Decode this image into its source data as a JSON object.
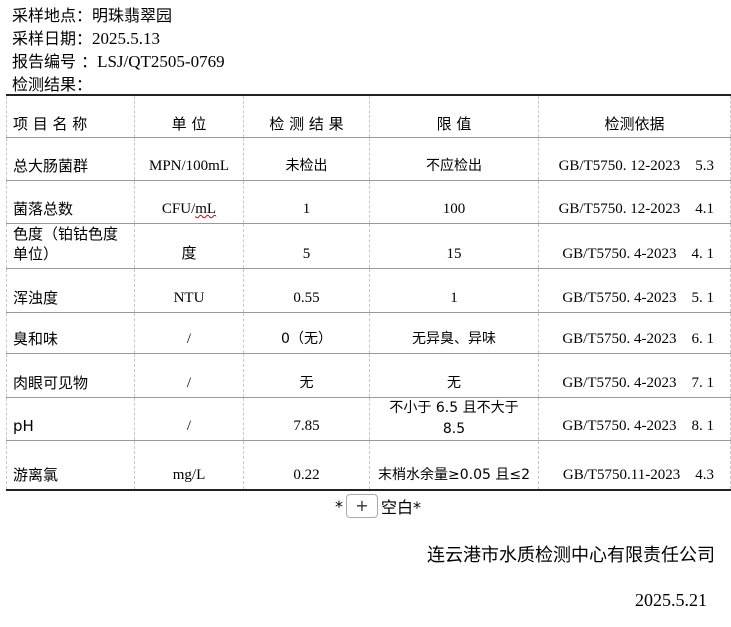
{
  "header": {
    "location_label": "采样地点：",
    "location": "明珠翡翠园",
    "date_label": "采样日期：",
    "date": "2025.5.13",
    "report_label": "报告编号 ：",
    "report_no": "LSJ/QT2505-0769",
    "results_label": "检测结果："
  },
  "table": {
    "columns": [
      "项 目 名 称",
      "单  位",
      "检 测 结 果",
      "限  值",
      "检测依据"
    ],
    "rows": [
      {
        "name": "总大肠菌群",
        "unit": "MPN/100mL",
        "result": "未检出",
        "limit": "不应检出",
        "basis": "GB/T5750. 12-2023    5.3"
      },
      {
        "name": "菌落总数",
        "unit": "CFU/mL",
        "result": "1",
        "limit": "100",
        "basis": "GB/T5750. 12-2023    4.1"
      },
      {
        "name": "色度（铂钴色度单位）",
        "unit": "度",
        "result": "5",
        "limit": "15",
        "basis": "GB/T5750. 4-2023    4. 1"
      },
      {
        "name": "浑浊度",
        "unit": "NTU",
        "result": "0.55",
        "limit": "1",
        "basis": "GB/T5750. 4-2023    5. 1"
      },
      {
        "name": "臭和味",
        "unit": "/",
        "result": "0（无）",
        "limit": "无异臭、异味",
        "basis": "GB/T5750. 4-2023    6. 1"
      },
      {
        "name": "肉眼可见物",
        "unit": "/",
        "result": "无",
        "limit": "无",
        "basis": "GB/T5750. 4-2023    7. 1"
      },
      {
        "name": "pH",
        "unit": "/",
        "result": "7.85",
        "limit": "不小于 6.5 且不大于 8.5",
        "basis": "GB/T5750. 4-2023    8. 1"
      },
      {
        "name": "游离氯",
        "unit": "mg/L",
        "result": "0.22",
        "limit": "末梢水余量≥0.05 且≤2",
        "basis": "GB/T5750.11-2023    4.3"
      }
    ]
  },
  "blank": {
    "left": "*",
    "plus": "+",
    "right": "空白*"
  },
  "footer": {
    "company": "连云港市水质检测中心有限责任公司",
    "date": "2025.5.21"
  }
}
